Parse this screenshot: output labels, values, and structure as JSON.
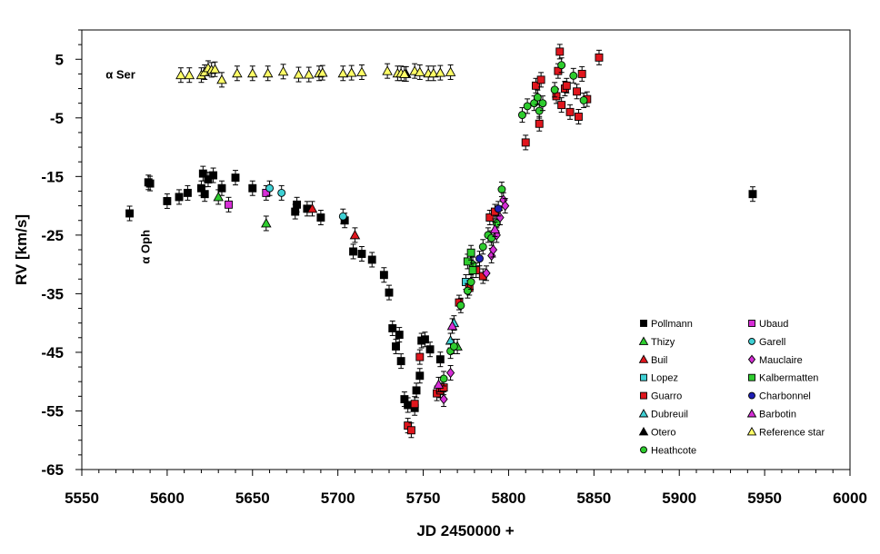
{
  "chart_data": {
    "type": "scatter",
    "xlabel": "JD 2450000 +",
    "ylabel": "RV [km/s]",
    "xlim": [
      5550,
      6000
    ],
    "ylim": [
      -65,
      10
    ],
    "xticks": [
      5550,
      5600,
      5650,
      5700,
      5750,
      5800,
      5850,
      5900,
      5950,
      6000
    ],
    "yticks": [
      5,
      -5,
      -15,
      -25,
      -35,
      -45,
      -55,
      -65
    ],
    "grid": false,
    "error_bars": true,
    "legend_placement": "bottom-right",
    "annotations": [
      {
        "text": "α Ser",
        "x": 5578,
        "y": 2.5,
        "orientation": "horizontal"
      },
      {
        "text": "α Oph",
        "x": 5587,
        "y": -27,
        "orientation": "vertical"
      }
    ],
    "series": [
      {
        "name": "Pollmann",
        "marker": "square",
        "color": "#000000",
        "points": [
          [
            5578,
            -21.3
          ],
          [
            5589,
            -16.0
          ],
          [
            5590,
            -16.2
          ],
          [
            5600,
            -19.2
          ],
          [
            5607,
            -18.5
          ],
          [
            5612,
            -17.8
          ],
          [
            5620,
            -17.0
          ],
          [
            5621,
            -14.5
          ],
          [
            5622,
            -18.0
          ],
          [
            5624,
            -15.5
          ],
          [
            5627,
            -14.8
          ],
          [
            5632,
            -17.0
          ],
          [
            5640,
            -15.2
          ],
          [
            5650,
            -17.0
          ],
          [
            5675,
            -21.0
          ],
          [
            5676,
            -19.8
          ],
          [
            5682,
            -20.5
          ],
          [
            5690,
            -22.0
          ],
          [
            5704,
            -22.5
          ],
          [
            5709,
            -27.8
          ],
          [
            5714,
            -28.2
          ],
          [
            5720,
            -29.2
          ],
          [
            5727,
            -31.8
          ],
          [
            5730,
            -34.8
          ],
          [
            5732,
            -40.9
          ],
          [
            5734,
            -44.0
          ],
          [
            5736,
            -42.0
          ],
          [
            5737,
            -46.5
          ],
          [
            5739,
            -53.0
          ],
          [
            5741,
            -54.0
          ],
          [
            5745,
            -54.5
          ],
          [
            5746,
            -51.5
          ],
          [
            5748,
            -49.0
          ],
          [
            5749,
            -43.0
          ],
          [
            5751,
            -42.8
          ],
          [
            5754,
            -44.5
          ],
          [
            5760,
            -46.2
          ],
          [
            5943,
            -18.0
          ]
        ]
      },
      {
        "name": "Thizy",
        "marker": "triangle",
        "color": "#2ecc2e",
        "points": [
          [
            5630,
            -18.5
          ],
          [
            5658,
            -23.0
          ],
          [
            5770,
            -44.0
          ]
        ]
      },
      {
        "name": "Buil",
        "marker": "triangle",
        "color": "#e0161d",
        "points": [
          [
            5685,
            -20.5
          ],
          [
            5710,
            -25.0
          ]
        ]
      },
      {
        "name": "Lopez",
        "marker": "square",
        "color": "#3fd0d4",
        "points": [
          [
            5775,
            -33.0
          ]
        ]
      },
      {
        "name": "Guarro",
        "marker": "square",
        "color": "#e0161d",
        "points": [
          [
            5741,
            -57.5
          ],
          [
            5743,
            -58.3
          ],
          [
            5745,
            -53.8
          ],
          [
            5748,
            -45.8
          ],
          [
            5758,
            -52.0
          ],
          [
            5760,
            -51.5
          ],
          [
            5762,
            -51.0
          ],
          [
            5771,
            -36.5
          ],
          [
            5777,
            -34.0
          ],
          [
            5781,
            -31.0
          ],
          [
            5785,
            -32.0
          ],
          [
            5789,
            -22.0
          ],
          [
            5792,
            -21.0
          ],
          [
            5810,
            -9.2
          ],
          [
            5816,
            0.5
          ],
          [
            5818,
            -6.0
          ],
          [
            5819,
            1.5
          ],
          [
            5828,
            -1.3
          ],
          [
            5829,
            3.0
          ],
          [
            5830,
            6.3
          ],
          [
            5831,
            -2.8
          ],
          [
            5833,
            0.0
          ],
          [
            5834,
            0.5
          ],
          [
            5836,
            -4.0
          ],
          [
            5840,
            -0.5
          ],
          [
            5841,
            -4.8
          ],
          [
            5843,
            2.5
          ],
          [
            5846,
            -1.8
          ],
          [
            5853,
            5.3
          ]
        ]
      },
      {
        "name": "Dubreuil",
        "marker": "triangle",
        "color": "#3fd0d4",
        "points": [
          [
            5766,
            -43.0
          ],
          [
            5768,
            -40.0
          ]
        ]
      },
      {
        "name": "Otero",
        "marker": "triangle",
        "color": "#000000",
        "points": [
          [
            5740,
            2.5
          ]
        ]
      },
      {
        "name": "Heathcote",
        "marker": "circle",
        "color": "#2ecc2e",
        "points": [
          [
            5762,
            -49.5
          ],
          [
            5766,
            -44.8
          ],
          [
            5768,
            -44.0
          ],
          [
            5772,
            -37.0
          ],
          [
            5776,
            -34.5
          ],
          [
            5778,
            -33.0
          ],
          [
            5779,
            -30.0
          ],
          [
            5785,
            -27.0
          ],
          [
            5788,
            -25.0
          ],
          [
            5790,
            -25.5
          ],
          [
            5793,
            -23.0
          ],
          [
            5796,
            -17.2
          ],
          [
            5808,
            -4.5
          ],
          [
            5811,
            -3.0
          ],
          [
            5815,
            -2.5
          ],
          [
            5817,
            -1.5
          ],
          [
            5818,
            -3.8
          ],
          [
            5820,
            -2.5
          ],
          [
            5827,
            -0.2
          ],
          [
            5831,
            4.0
          ],
          [
            5838,
            2.2
          ],
          [
            5844,
            -2.0
          ]
        ]
      },
      {
        "name": "Ubaud",
        "marker": "square",
        "color": "#d62ed6",
        "points": [
          [
            5636,
            -19.8
          ],
          [
            5658,
            -17.8
          ]
        ]
      },
      {
        "name": "Garell",
        "marker": "circle",
        "color": "#3fd0d4",
        "points": [
          [
            5660,
            -17.0
          ],
          [
            5667,
            -17.8
          ],
          [
            5703,
            -21.8
          ]
        ]
      },
      {
        "name": "Mauclaire",
        "marker": "diamond",
        "color": "#d62ed6",
        "points": [
          [
            5762,
            -53.0
          ],
          [
            5766,
            -48.5
          ],
          [
            5787,
            -31.5
          ],
          [
            5790,
            -28.5
          ],
          [
            5791,
            -27.5
          ],
          [
            5793,
            -25.0
          ],
          [
            5795,
            -22.0
          ],
          [
            5797,
            -19.0
          ],
          [
            5798,
            -20.0
          ]
        ]
      },
      {
        "name": "Kalbermatten",
        "marker": "square",
        "color": "#2ecc2e",
        "points": [
          [
            5776,
            -29.5
          ],
          [
            5778,
            -28.0
          ],
          [
            5779,
            -31.0
          ]
        ]
      },
      {
        "name": "Charbonnel",
        "marker": "circle",
        "color": "#1e1eb4",
        "points": [
          [
            5783,
            -29.0
          ],
          [
            5794,
            -20.5
          ]
        ]
      },
      {
        "name": "Barbotin",
        "marker": "triangle",
        "color": "#d62ed6",
        "points": [
          [
            5759,
            -50.5
          ],
          [
            5767,
            -40.5
          ],
          [
            5792,
            -24.0
          ]
        ]
      },
      {
        "name": "Reference star",
        "marker": "triangle",
        "color": "#ffff66",
        "points": [
          [
            5608,
            2.3
          ],
          [
            5613,
            2.3
          ],
          [
            5620,
            2.3
          ],
          [
            5622,
            2.8
          ],
          [
            5624,
            3.5
          ],
          [
            5626,
            3.2
          ],
          [
            5628,
            3.3
          ],
          [
            5632,
            1.5
          ],
          [
            5641,
            2.6
          ],
          [
            5650,
            2.6
          ],
          [
            5659,
            2.6
          ],
          [
            5668,
            2.9
          ],
          [
            5677,
            2.4
          ],
          [
            5683,
            2.4
          ],
          [
            5689,
            2.6
          ],
          [
            5691,
            2.7
          ],
          [
            5703,
            2.6
          ],
          [
            5708,
            2.7
          ],
          [
            5714,
            2.8
          ],
          [
            5729,
            3.0
          ],
          [
            5735,
            2.6
          ],
          [
            5737,
            2.6
          ],
          [
            5739,
            2.5
          ],
          [
            5745,
            3.0
          ],
          [
            5748,
            2.8
          ],
          [
            5753,
            2.6
          ],
          [
            5756,
            2.6
          ],
          [
            5760,
            2.7
          ],
          [
            5766,
            2.8
          ]
        ]
      }
    ]
  }
}
